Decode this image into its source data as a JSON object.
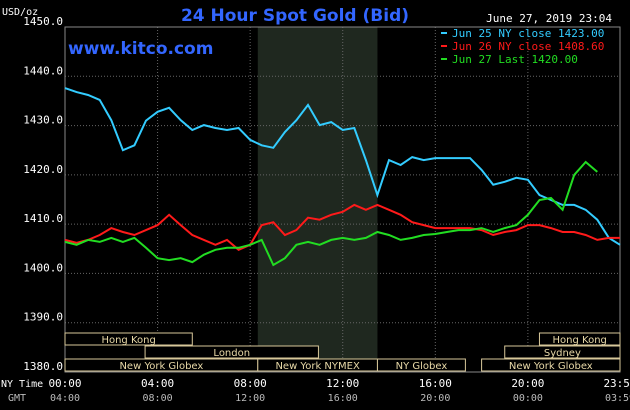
{
  "chart_data": {
    "type": "line",
    "title": "24 Hour Spot Gold (Bid)",
    "timestamp": "June 27, 2019 23:04",
    "watermark": "www.kitco.com",
    "y_label": "USD/oz",
    "x_label": "NY Time",
    "x2_label": "GMT",
    "xlim": [
      0,
      23.98
    ],
    "ylim": [
      1380,
      1450
    ],
    "grid": true,
    "shaded_range": [
      8.33,
      13.5
    ],
    "xticks": [
      {
        "value": 0,
        "label": "00:00"
      },
      {
        "value": 4,
        "label": "04:00"
      },
      {
        "value": 8,
        "label": "08:00"
      },
      {
        "value": 12,
        "label": "12:00"
      },
      {
        "value": 16,
        "label": "16:00"
      },
      {
        "value": 20,
        "label": "20:00"
      },
      {
        "value": 23.98,
        "label": "23:59"
      }
    ],
    "gmt_tick_labels": [
      "04:00",
      "08:00",
      "12:00",
      "16:00",
      "20:00",
      "00:00",
      "03:59"
    ],
    "yticks": [
      {
        "value": 1380,
        "label": "1380.0"
      },
      {
        "value": 1390,
        "label": "1390.0"
      },
      {
        "value": 1400,
        "label": "1400.0"
      },
      {
        "value": 1410,
        "label": "1410.0"
      },
      {
        "value": 1420,
        "label": "1420.0"
      },
      {
        "value": 1430,
        "label": "1430.0"
      },
      {
        "value": 1440,
        "label": "1440.0"
      },
      {
        "value": 1450,
        "label": "1450.0"
      }
    ],
    "sessions": [
      [
        {
          "label": "Hong Kong",
          "start": 0,
          "end": 5.5
        },
        {
          "label": "Hong Kong",
          "start": 20.5,
          "end": 23.98
        }
      ],
      [
        {
          "label": "London",
          "start": 3.46,
          "end": 10.95
        },
        {
          "label": "Sydney",
          "start": 19,
          "end": 23.98
        }
      ],
      [
        {
          "label": "New York Globex",
          "start": 0,
          "end": 8.33
        },
        {
          "label": "New York NYMEX",
          "start": 8.33,
          "end": 13.5
        },
        {
          "label": "NY Globex",
          "start": 13.5,
          "end": 17.3
        },
        {
          "label": "New York Globex",
          "start": 18,
          "end": 23.98
        }
      ]
    ],
    "x": [
      0,
      0.5,
      1,
      1.5,
      2,
      2.5,
      3,
      3.5,
      4,
      4.5,
      5,
      5.5,
      6,
      6.5,
      7,
      7.5,
      8,
      8.5,
      9,
      9.5,
      10,
      10.5,
      11,
      11.5,
      12,
      12.5,
      13,
      13.5,
      14,
      14.5,
      15,
      15.5,
      16,
      16.5,
      17,
      17.5,
      18,
      18.5,
      19,
      19.5,
      20,
      20.5,
      21,
      21.5,
      22,
      22.5,
      23,
      23.5,
      23.98
    ],
    "series": [
      {
        "name": "Jun 25 NY close 1423.00",
        "color": "#33ccff",
        "values": [
          1437.6,
          1436.8,
          1436.2,
          1435.2,
          1431.1,
          1425,
          1426,
          1431,
          1432.8,
          1433.6,
          1431.1,
          1429.1,
          1430.1,
          1429.5,
          1429.1,
          1429.5,
          1427.1,
          1426,
          1425.5,
          1428.7,
          1431.1,
          1434.2,
          1430.1,
          1430.7,
          1429.1,
          1429.5,
          1423,
          1415.9,
          1423,
          1422,
          1423.6,
          1423,
          1423.4,
          1423.4,
          1423.4,
          1423.4,
          1421,
          1418,
          1418.6,
          1419.4,
          1419,
          1415.9,
          1414.9,
          1413.9,
          1413.9,
          1412.9,
          1410.9,
          1407.2,
          1405.8
        ]
      },
      {
        "name": "Jun 26 NY close 1408.60",
        "color": "#ff1a1a",
        "values": [
          1406.8,
          1406.2,
          1406.8,
          1407.8,
          1409.2,
          1408.4,
          1407.8,
          1408.8,
          1409.8,
          1411.9,
          1409.8,
          1407.8,
          1406.8,
          1405.8,
          1406.8,
          1404.8,
          1405.8,
          1409.8,
          1410.4,
          1407.8,
          1408.8,
          1411.3,
          1410.9,
          1411.9,
          1412.5,
          1413.9,
          1412.9,
          1413.9,
          1412.9,
          1411.9,
          1410.4,
          1409.8,
          1409.2,
          1409.2,
          1409.2,
          1409.2,
          1408.8,
          1407.8,
          1408.4,
          1408.8,
          1409.8,
          1409.8,
          1409.2,
          1408.4,
          1408.4,
          1407.8,
          1406.8,
          1407.2,
          1407.2
        ]
      },
      {
        "name": "Jun 27 Last 1420.00",
        "color": "#22dd22",
        "values": [
          1406.4,
          1405.8,
          1406.8,
          1406.4,
          1407.2,
          1406.4,
          1407.2,
          1405.2,
          1403.1,
          1402.7,
          1403.1,
          1402.3,
          1403.8,
          1404.8,
          1405.2,
          1405.2,
          1405.8,
          1406.8,
          1401.7,
          1403.1,
          1405.8,
          1406.4,
          1405.8,
          1406.8,
          1407.2,
          1406.8,
          1407.2,
          1408.4,
          1407.8,
          1406.8,
          1407.2,
          1407.8,
          1408,
          1408.4,
          1408.8,
          1408.8,
          1409.2,
          1408.4,
          1409.2,
          1409.8,
          1411.9,
          1414.9,
          1415.3,
          1412.9,
          1420,
          1422.6,
          1420.6,
          null,
          null
        ]
      }
    ]
  }
}
